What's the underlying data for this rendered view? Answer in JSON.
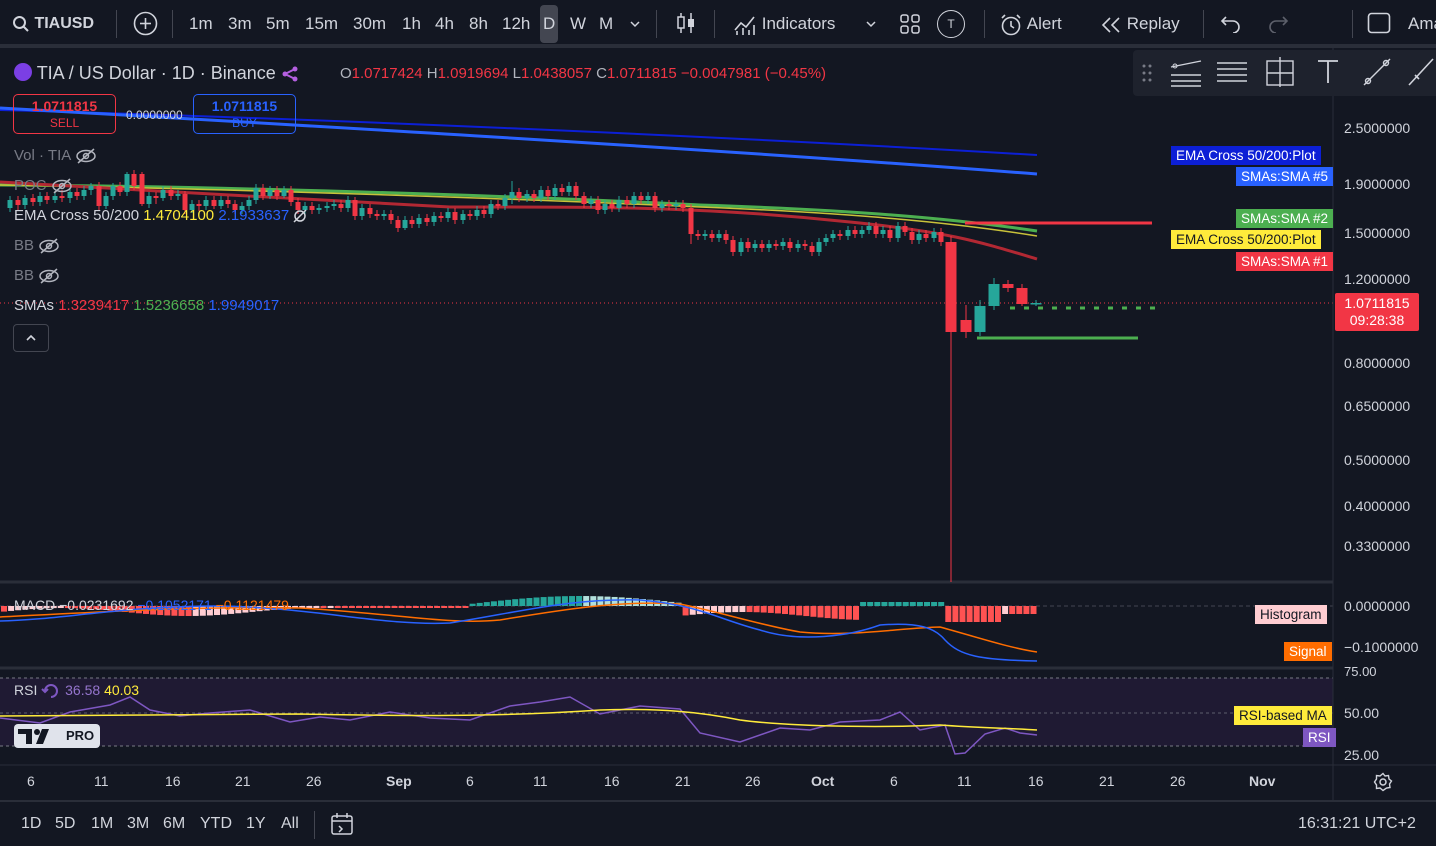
{
  "toolbar": {
    "symbol": "TIAUSD",
    "timeframes": [
      "1m",
      "3m",
      "5m",
      "15m",
      "30m",
      "1h",
      "4h",
      "8h",
      "12h",
      "D",
      "W",
      "M"
    ],
    "active_timeframe": "D",
    "indicators_label": "Indicators",
    "templates_badge": "T",
    "alert_label": "Alert",
    "replay_label": "Replay",
    "account_label": "Ama"
  },
  "legend": {
    "title": "TIA / US Dollar · 1D · Binance",
    "o_label": "O",
    "o": "1.0717424",
    "h_label": "H",
    "h": "1.0919694",
    "l_label": "L",
    "l": "1.0438057",
    "c_label": "C",
    "c": "1.0711815",
    "change": "−0.0047981 (−0.45%)",
    "sell_price": "1.0711815",
    "sell_label": "SELL",
    "spread": "0.0000000",
    "buy_price": "1.0711815",
    "buy_label": "BUY",
    "vol_label": "Vol · TIA",
    "poc_label": "POC",
    "ema_label": "EMA Cross 50/200",
    "ema_value1": "1.4704100",
    "ema_value2": "2.1933637",
    "bb1_label": "BB",
    "bb2_label": "BB",
    "smas_label": "SMAs",
    "sma1": "1.3239417",
    "sma2": "1.5236658",
    "sma3": "1.9949017"
  },
  "price_axis": {
    "ticks": [
      "2.5000000",
      "1.9000000",
      "1.5000000",
      "1.2000000",
      "0.8000000",
      "0.6500000",
      "0.5000000",
      "0.4000000",
      "0.3300000"
    ],
    "current_price": "1.0711815",
    "countdown": "09:28:38",
    "tags": [
      {
        "text": "EMA Cross 50/200:Plot",
        "bg": "#0c1fd6",
        "fg": "#ffffff"
      },
      {
        "text": "SMAs:SMA #5",
        "bg": "#2962ff",
        "fg": "#ffffff"
      },
      {
        "text": "SMAs:SMA #2",
        "bg": "#4caf50",
        "fg": "#ffffff"
      },
      {
        "text": "EMA Cross 50/200:Plot",
        "bg": "#ffeb3b",
        "fg": "#131722"
      },
      {
        "text": "SMAs:SMA #1",
        "bg": "#f23645",
        "fg": "#ffffff"
      }
    ]
  },
  "macd": {
    "label": "MACD",
    "v1": "−0.0231692",
    "v2": "−0.1052171",
    "v3": "−0.1121479",
    "axis": [
      "0.0000000",
      "−0.1000000"
    ],
    "tags": [
      {
        "text": "Histogram",
        "bg": "#ffcdd2",
        "fg": "#131722"
      },
      {
        "text": "Signal",
        "bg": "#ff6d00",
        "fg": "#ffffff"
      }
    ]
  },
  "rsi": {
    "label": "RSI",
    "value": "36.58",
    "ma_value": "40.03",
    "axis": [
      "75.00",
      "50.00",
      "25.00"
    ],
    "tags": [
      {
        "text": "RSI-based MA",
        "bg": "#ffeb3b",
        "fg": "#131722"
      },
      {
        "text": "RSI",
        "bg": "#7e57c2",
        "fg": "#ffffff"
      }
    ]
  },
  "date_axis": [
    "6",
    "11",
    "16",
    "21",
    "26",
    "Sep",
    "6",
    "11",
    "16",
    "21",
    "26",
    "Oct",
    "6",
    "11",
    "16",
    "21",
    "26",
    "Nov"
  ],
  "logo_text": "PRO",
  "bottom": {
    "ranges": [
      "1D",
      "5D",
      "1M",
      "3M",
      "6M",
      "YTD",
      "1Y",
      "All"
    ],
    "clock": "16:31:21 UTC+2"
  },
  "colors": {
    "up": "#26a69a",
    "down": "#f23645",
    "background": "#131722",
    "ema_blue": "#1f4fd6",
    "sma_green": "#4caf50",
    "sma_red": "#b22833"
  }
}
